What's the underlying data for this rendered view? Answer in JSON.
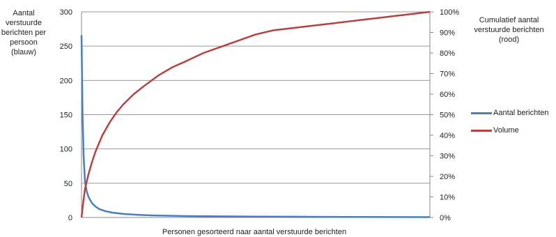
{
  "chart_data": {
    "type": "line",
    "ylabel_left": "Aantal verstuurde berichten per persoon (blauw)",
    "ylabel_right": "Cumulatief aantal verstuurde berichten (rood)",
    "xlabel": "Personen gesorteerd naar aantal verstuurde berichten",
    "y_left_ticks": [
      "0",
      "50",
      "100",
      "150",
      "200",
      "250",
      "300"
    ],
    "y_left_lim": [
      0,
      300
    ],
    "y_right_ticks": [
      "0%",
      "10%",
      "20%",
      "30%",
      "40%",
      "50%",
      "60%",
      "70%",
      "80%",
      "90%",
      "100%"
    ],
    "y_right_lim": [
      0,
      100
    ],
    "grid": true,
    "legend_position": "right",
    "series": [
      {
        "name": "Aantal berichten",
        "axis": "left",
        "color": "#4a7eba",
        "x": [
          0,
          0.3,
          0.6,
          1,
          1.5,
          2,
          3,
          4,
          5,
          7,
          9,
          12,
          16,
          20,
          25,
          30,
          40,
          50,
          60,
          70,
          80,
          90,
          100
        ],
        "y": [
          266,
          150,
          90,
          52,
          38,
          30,
          21,
          16,
          12.5,
          9,
          7,
          5.2,
          3.9,
          3.1,
          2.5,
          2.1,
          1.6,
          1.3,
          1.1,
          0.9,
          0.75,
          0.6,
          0.5
        ]
      },
      {
        "name": "Volume",
        "axis": "right",
        "color": "#b5423e",
        "x": [
          0,
          0.4,
          1,
          2,
          3,
          4,
          5,
          6,
          8,
          10,
          12,
          15,
          18,
          22,
          26,
          30,
          35,
          40,
          45,
          50,
          55,
          60,
          65,
          70,
          75,
          80,
          85,
          90,
          95,
          100
        ],
        "y": [
          0,
          6,
          14,
          21,
          27,
          32,
          36,
          40,
          46,
          51,
          55,
          60,
          64,
          69,
          73,
          76,
          80,
          83,
          86,
          89,
          91,
          92,
          93,
          94,
          95,
          96,
          97,
          98,
          99,
          100
        ]
      }
    ]
  }
}
